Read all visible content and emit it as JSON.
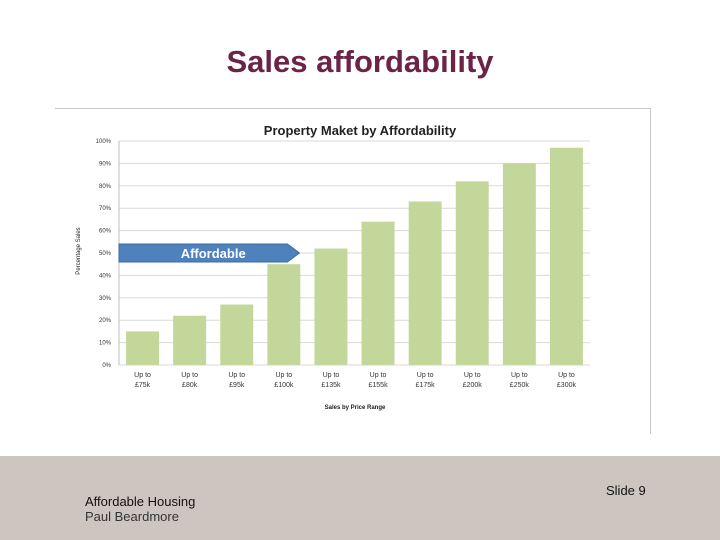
{
  "slide": {
    "title": "Sales affordability",
    "footer_title": "Affordable Housing",
    "footer_author": "Paul Beardmore",
    "slide_label": "Slide",
    "slide_number": "9"
  },
  "colors": {
    "title": "#6b2346",
    "bar": "#c4d79b",
    "arrow": "#4f81bd",
    "footer_bg": "#cdc6c0"
  },
  "chart_data": {
    "type": "bar",
    "title": "Property Maket  by Affordability",
    "xlabel": "Sales by Price Range",
    "ylabel": "Percentage Sales",
    "ylim": [
      0,
      100
    ],
    "yticks": [
      "0%",
      "10%",
      "20%",
      "30%",
      "40%",
      "50%",
      "60%",
      "70%",
      "80%",
      "90%",
      "100%"
    ],
    "categories": [
      [
        "Up to",
        "£75k"
      ],
      [
        "Up to",
        "£80k"
      ],
      [
        "Up to",
        "£95k"
      ],
      [
        "Up to",
        "£100k"
      ],
      [
        "Up to",
        "£135k"
      ],
      [
        "Up to",
        "£155k"
      ],
      [
        "Up to",
        "£175k"
      ],
      [
        "Up to",
        "£200k"
      ],
      [
        "Up to",
        "£250k"
      ],
      [
        "Up to",
        "£300k"
      ]
    ],
    "values": [
      15,
      22,
      27,
      45,
      52,
      64,
      73,
      82,
      90,
      97
    ],
    "grid": true,
    "annotation": {
      "text": "Affordable",
      "threshold": 50
    }
  }
}
